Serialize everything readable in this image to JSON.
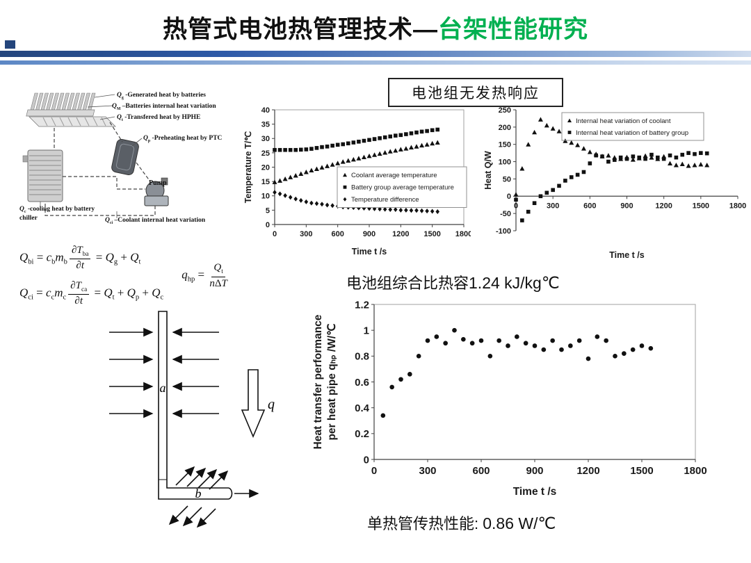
{
  "slide": {
    "title_black": "热管式电池热管理技术—",
    "title_green": "台架性能研究",
    "accent_green": "#00b050",
    "bar_dark": "#24457c",
    "bar_light": "#9db8dd"
  },
  "callout": {
    "text": "电池组无发热响应"
  },
  "spec_heat": {
    "prefix": "电池组综合比热容",
    "value": "1.24 kJ/kg℃"
  },
  "hp_perf": {
    "prefix": "单热管传热性能:",
    "value": "0.86 W/℃"
  },
  "system_diagram": {
    "labels": {
      "qg": "<i>Q</i><sub>g</sub> -Generated heat by batteries",
      "qm": "<i>Q</i><sub>M</sub> –Batteries internal heat variation",
      "qt": "<i>Q</i><sub>t</sub> -Transfered heat by HPHE",
      "qp": "<i>Q</i><sub>p</sub> -Preheating heat by PTC",
      "pump": "Pump",
      "qc": "<i>Q</i><sub>c</sub> -cooling heat by battery chiller",
      "qci": "<i>Q</i><sub>ci</sub> –Coolant internal heat variation"
    }
  },
  "equations": {
    "eq_bi": "<i>Q</i><sub>bi</sub> = <i>c</i><sub>b</sub><i>m</i><sub>b</sub><span class='frac'><span class='num'>∂<i>T</i><sub>ba</sub></span><span class='den'>∂<i>t</i></span></span> = <i>Q</i><sub>g</sub> + <i>Q</i><sub>t</sub>",
    "eq_ci": "<i>Q</i><sub>ci</sub> = <i>c</i><sub>c</sub><i>m</i><sub>c</sub><span class='frac'><span class='num'>∂<i>T</i><sub>ca</sub></span><span class='den'>∂<i>t</i></span></span> = <i>Q</i><sub>t</sub> + <i>Q</i><sub>p</sub> + <i>Q</i><sub>c</sub>",
    "eq_hp": "<i>q</i><sub>hp</sub> = <span class='frac'><span class='num'><i>Q</i><sub>t</sub></span><span class='den'><i>n</i>Δ<i>T</i></span></span>"
  },
  "pipe_diagram": {
    "label_a": "a",
    "label_q": "q",
    "label_b": "b"
  },
  "chart_data": [
    {
      "id": "chart-temp",
      "type": "scatter",
      "title": "",
      "xlabel": "Time t /s",
      "ylabel": "Temperature T/℃",
      "xlim": [
        0,
        1800
      ],
      "ylim": [
        0,
        40
      ],
      "xticks": [
        0,
        300,
        600,
        900,
        1200,
        1500,
        1800
      ],
      "yticks": [
        0,
        5,
        10,
        15,
        20,
        25,
        30,
        35,
        40
      ],
      "grid": false,
      "legend_position": "inside-right",
      "x": [
        0,
        50,
        100,
        150,
        200,
        250,
        300,
        350,
        400,
        450,
        500,
        550,
        600,
        650,
        700,
        750,
        800,
        850,
        900,
        950,
        1000,
        1050,
        1100,
        1150,
        1200,
        1250,
        1300,
        1350,
        1400,
        1450,
        1500,
        1550
      ],
      "series": [
        {
          "name": "Coolant average  temperature",
          "marker": "triangle",
          "y": [
            14.8,
            15.3,
            15.9,
            16.5,
            17.1,
            17.7,
            18.3,
            18.9,
            19.4,
            19.9,
            20.4,
            20.9,
            21.4,
            21.9,
            22.3,
            22.7,
            23.1,
            23.5,
            23.9,
            24.3,
            24.7,
            25.1,
            25.5,
            25.8,
            26.2,
            26.5,
            26.9,
            27.2,
            27.6,
            27.9,
            28.3,
            28.6
          ]
        },
        {
          "name": "Battery group average temperature",
          "marker": "square",
          "y": [
            26,
            26,
            26,
            26,
            26,
            26.1,
            26.2,
            26.4,
            26.7,
            27,
            27.2,
            27.5,
            27.8,
            28,
            28.3,
            28.6,
            28.9,
            29.2,
            29.5,
            29.8,
            30.1,
            30.4,
            30.7,
            31,
            31.2,
            31.5,
            31.8,
            32.1,
            32.4,
            32.6,
            32.9,
            33.1
          ]
        },
        {
          "name": "Temperature difference",
          "marker": "diamond",
          "y": [
            11.2,
            10.7,
            10.1,
            9.5,
            8.9,
            8.4,
            7.9,
            7.5,
            7.3,
            7.1,
            6.8,
            6.6,
            6.4,
            6.1,
            6,
            5.9,
            5.8,
            5.7,
            5.6,
            5.5,
            5.4,
            5.3,
            5.2,
            5.2,
            5,
            5,
            4.9,
            4.9,
            4.8,
            4.7,
            4.6,
            4.5
          ]
        }
      ]
    },
    {
      "id": "chart-heat",
      "type": "scatter",
      "title": "",
      "xlabel": "Time t /s",
      "ylabel": "Heat Q/W",
      "xlim": [
        0,
        1800
      ],
      "ylim": [
        -100,
        250
      ],
      "xticks": [
        0,
        300,
        600,
        900,
        1200,
        1500,
        1800
      ],
      "yticks": [
        -100,
        -50,
        0,
        50,
        100,
        150,
        200,
        250
      ],
      "grid": false,
      "legend_position": "top-right",
      "x": [
        0,
        50,
        100,
        150,
        200,
        250,
        300,
        350,
        400,
        450,
        500,
        550,
        600,
        650,
        700,
        750,
        800,
        850,
        900,
        950,
        1000,
        1050,
        1100,
        1150,
        1200,
        1250,
        1300,
        1350,
        1400,
        1450,
        1500,
        1550
      ],
      "series": [
        {
          "name": "Internal heat variation of coolant",
          "marker": "triangle",
          "y": [
            5,
            80,
            150,
            185,
            222,
            205,
            196,
            188,
            160,
            155,
            148,
            138,
            128,
            122,
            116,
            118,
            112,
            108,
            113,
            106,
            110,
            117,
            112,
            108,
            115,
            95,
            90,
            93,
            88,
            90,
            92,
            90
          ]
        },
        {
          "name": "Internal heat variation of battery group",
          "marker": "square",
          "y": [
            -10,
            -70,
            -45,
            -20,
            0,
            10,
            18,
            30,
            45,
            55,
            62,
            70,
            95,
            118,
            115,
            100,
            105,
            112,
            108,
            115,
            112,
            108,
            120,
            112,
            108,
            118,
            112,
            120,
            125,
            122,
            125,
            124
          ]
        }
      ]
    },
    {
      "id": "chart-qhp",
      "type": "scatter",
      "title": "",
      "xlabel": "Time t /s",
      "ylabel": [
        "Heat transfer performance",
        "per heat pipe  qₕₚ /W/℃"
      ],
      "xlim": [
        0,
        1800
      ],
      "ylim": [
        0,
        1.2
      ],
      "xticks": [
        0,
        300,
        600,
        900,
        1200,
        1500,
        1800
      ],
      "yticks": [
        0,
        0.2,
        0.4,
        0.6,
        0.8,
        1,
        1.2
      ],
      "grid": false,
      "legend_position": "none",
      "x": [
        50,
        100,
        150,
        200,
        250,
        300,
        350,
        400,
        450,
        500,
        550,
        600,
        650,
        700,
        750,
        800,
        850,
        900,
        950,
        1000,
        1050,
        1100,
        1150,
        1200,
        1250,
        1300,
        1350,
        1400,
        1450,
        1500,
        1550
      ],
      "series": [
        {
          "name": "Heat transfer performance per heat pipe",
          "marker": "circle",
          "y": [
            0.34,
            0.56,
            0.62,
            0.66,
            0.8,
            0.92,
            0.95,
            0.9,
            1,
            0.93,
            0.9,
            0.92,
            0.8,
            0.92,
            0.88,
            0.95,
            0.9,
            0.88,
            0.85,
            0.92,
            0.85,
            0.88,
            0.92,
            0.78,
            0.95,
            0.92,
            0.8,
            0.82,
            0.85,
            0.88,
            0.86
          ]
        }
      ]
    }
  ]
}
